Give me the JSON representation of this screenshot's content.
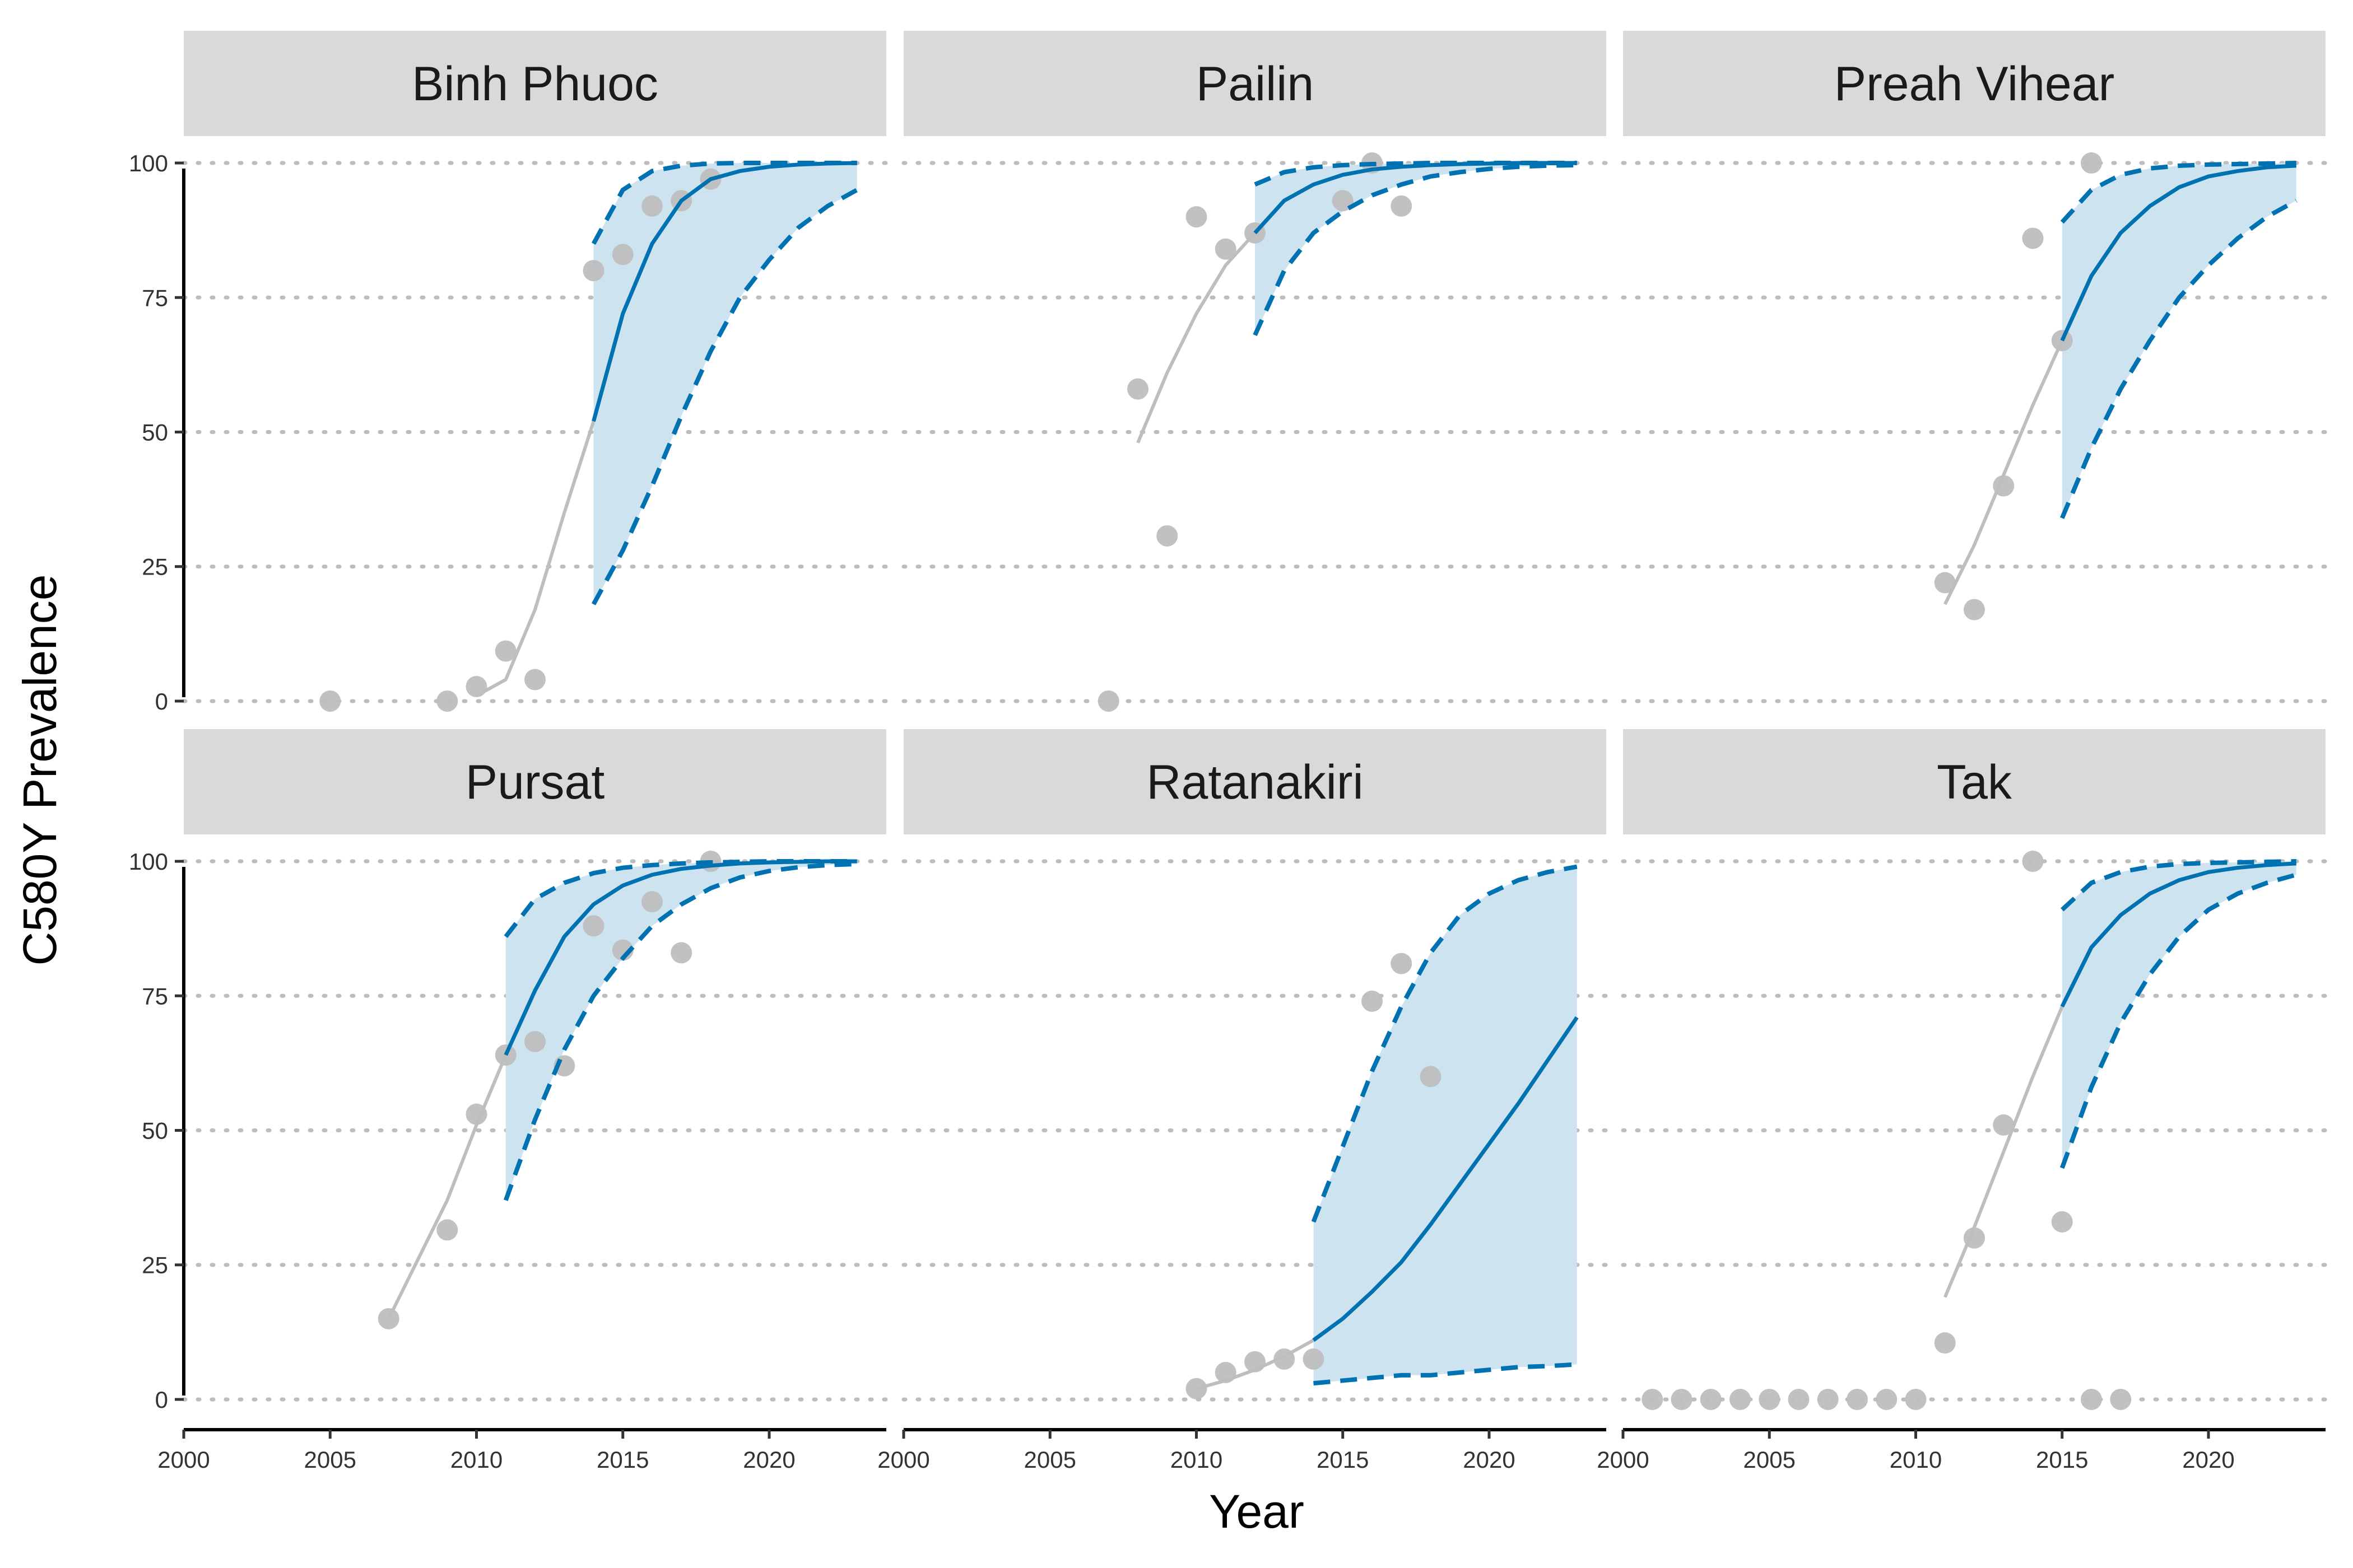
{
  "chart_data": {
    "type": "line",
    "xlabel": "Year",
    "ylabel": "C580Y Prevalence",
    "xlim": [
      2000,
      2024
    ],
    "ylim": [
      -5,
      105
    ],
    "x_ticks": [
      2000,
      2005,
      2010,
      2015,
      2020
    ],
    "y_ticks": [
      0,
      25,
      50,
      75,
      100
    ],
    "grid": "horizontal dotted",
    "colors": {
      "observed": "#BEBEBE",
      "forecast": "#0072B2",
      "band": "#CDE4F0",
      "strip": "#D9D9D9"
    },
    "facets": [
      {
        "name": "Binh Phuoc",
        "observed": [
          [
            2005,
            0
          ],
          [
            2009,
            0
          ],
          [
            2010,
            2.7
          ],
          [
            2011,
            9.3
          ],
          [
            2012,
            4
          ],
          [
            2014,
            80
          ],
          [
            2015,
            83
          ],
          [
            2016,
            92
          ],
          [
            2017,
            93
          ],
          [
            2018,
            97
          ]
        ],
        "fit": [
          [
            2010,
            1
          ],
          [
            2011,
            4
          ],
          [
            2012,
            17
          ],
          [
            2013,
            35
          ],
          [
            2014,
            52
          ]
        ],
        "forecast": {
          "x": [
            2014,
            2015,
            2016,
            2017,
            2018,
            2019,
            2020,
            2021,
            2022,
            2023
          ],
          "median": [
            52,
            72,
            85,
            93,
            97,
            98.5,
            99.3,
            99.7,
            99.9,
            100
          ],
          "lower": [
            18,
            28,
            40,
            53,
            65,
            75,
            82,
            88,
            92,
            95
          ],
          "upper": [
            85,
            95,
            98.5,
            99.5,
            99.9,
            100,
            100,
            100,
            100,
            100
          ]
        }
      },
      {
        "name": "Pailin",
        "observed": [
          [
            2007,
            0
          ],
          [
            2008,
            58
          ],
          [
            2009,
            30.7
          ],
          [
            2010,
            90
          ],
          [
            2011,
            84
          ],
          [
            2012,
            87
          ],
          [
            2015,
            93
          ],
          [
            2016,
            100
          ],
          [
            2017,
            92
          ]
        ],
        "fit": [
          [
            2008,
            48
          ],
          [
            2009,
            61
          ],
          [
            2010,
            72
          ],
          [
            2011,
            81
          ],
          [
            2012,
            87
          ]
        ],
        "forecast": {
          "x": [
            2012,
            2013,
            2014,
            2015,
            2016,
            2017,
            2018,
            2019,
            2020,
            2021,
            2022,
            2023
          ],
          "median": [
            87,
            93,
            96,
            97.8,
            98.8,
            99.3,
            99.6,
            99.8,
            99.9,
            100,
            100,
            100
          ],
          "lower": [
            68,
            80,
            87,
            91,
            94,
            96,
            97.5,
            98.3,
            98.9,
            99.3,
            99.5,
            99.6
          ],
          "upper": [
            96,
            98.3,
            99.2,
            99.6,
            99.8,
            99.9,
            100,
            100,
            100,
            100,
            100,
            100
          ]
        }
      },
      {
        "name": "Preah Vihear",
        "observed": [
          [
            2011,
            22
          ],
          [
            2012,
            17
          ],
          [
            2013,
            40
          ],
          [
            2014,
            86
          ],
          [
            2015,
            67
          ],
          [
            2016,
            100
          ]
        ],
        "fit": [
          [
            2011,
            18
          ],
          [
            2012,
            29
          ],
          [
            2013,
            42
          ],
          [
            2014,
            55
          ],
          [
            2015,
            67
          ]
        ],
        "forecast": {
          "x": [
            2015,
            2016,
            2017,
            2018,
            2019,
            2020,
            2021,
            2022,
            2023
          ],
          "median": [
            67,
            79,
            87,
            92,
            95.5,
            97.5,
            98.5,
            99.2,
            99.5
          ],
          "lower": [
            34,
            47,
            58,
            67,
            75,
            81,
            86,
            90,
            93
          ],
          "upper": [
            89,
            95,
            97.8,
            99,
            99.5,
            99.7,
            99.8,
            99.9,
            100
          ]
        }
      },
      {
        "name": "Pursat",
        "observed": [
          [
            2007,
            15
          ],
          [
            2009,
            31.5
          ],
          [
            2010,
            53
          ],
          [
            2011,
            64
          ],
          [
            2012,
            66.5
          ],
          [
            2013,
            62
          ],
          [
            2014,
            88
          ],
          [
            2015,
            83.5
          ],
          [
            2016,
            92.5
          ],
          [
            2017,
            83
          ],
          [
            2018,
            100
          ]
        ],
        "fit": [
          [
            2007,
            15
          ],
          [
            2008,
            26
          ],
          [
            2009,
            37
          ],
          [
            2010,
            51
          ],
          [
            2011,
            64
          ]
        ],
        "forecast": {
          "x": [
            2011,
            2012,
            2013,
            2014,
            2015,
            2016,
            2017,
            2018,
            2019,
            2020,
            2021,
            2022,
            2023
          ],
          "median": [
            64,
            76,
            86,
            92,
            95.5,
            97.5,
            98.6,
            99.2,
            99.6,
            99.8,
            99.9,
            100,
            100
          ],
          "lower": [
            37,
            52,
            65,
            75,
            82,
            88,
            92,
            95,
            97,
            98.2,
            98.9,
            99.3,
            99.5
          ],
          "upper": [
            86,
            93,
            96,
            97.8,
            98.8,
            99.3,
            99.6,
            99.8,
            99.9,
            100,
            100,
            100,
            100
          ]
        }
      },
      {
        "name": "Ratanakiri",
        "observed": [
          [
            2010,
            2
          ],
          [
            2011,
            5
          ],
          [
            2012,
            7
          ],
          [
            2013,
            7.5
          ],
          [
            2014,
            7.5
          ],
          [
            2016,
            74
          ],
          [
            2017,
            81
          ],
          [
            2018,
            60
          ]
        ],
        "fit": [
          [
            2010,
            2
          ],
          [
            2011,
            3.5
          ],
          [
            2012,
            5.5
          ],
          [
            2013,
            8
          ],
          [
            2014,
            11
          ]
        ],
        "forecast": {
          "x": [
            2014,
            2015,
            2016,
            2017,
            2018,
            2019,
            2020,
            2021,
            2022,
            2023
          ],
          "median": [
            11,
            15,
            20,
            25.5,
            32.5,
            40,
            47.5,
            55,
            63,
            71
          ],
          "lower": [
            3,
            3.5,
            4,
            4.5,
            4.5,
            5,
            5.5,
            6,
            6.2,
            6.5
          ],
          "upper": [
            33,
            47,
            61,
            73,
            83,
            90,
            94,
            96.5,
            98,
            99
          ]
        }
      },
      {
        "name": "Tak",
        "observed": [
          [
            2001,
            0
          ],
          [
            2002,
            0
          ],
          [
            2003,
            0
          ],
          [
            2004,
            0
          ],
          [
            2005,
            0
          ],
          [
            2006,
            0
          ],
          [
            2007,
            0
          ],
          [
            2008,
            0
          ],
          [
            2009,
            0
          ],
          [
            2010,
            0
          ],
          [
            2011,
            10.5
          ],
          [
            2012,
            30
          ],
          [
            2013,
            51
          ],
          [
            2014,
            100
          ],
          [
            2015,
            33
          ],
          [
            2016,
            0
          ],
          [
            2017,
            0
          ]
        ],
        "fit": [
          [
            2011,
            19
          ],
          [
            2012,
            32
          ],
          [
            2013,
            46
          ],
          [
            2014,
            60
          ],
          [
            2015,
            73
          ]
        ],
        "forecast": {
          "x": [
            2015,
            2016,
            2017,
            2018,
            2019,
            2020,
            2021,
            2022,
            2023
          ],
          "median": [
            73,
            84,
            90,
            94,
            96.5,
            98,
            98.8,
            99.3,
            99.6
          ],
          "lower": [
            43,
            58,
            70,
            79,
            86,
            91,
            94,
            96,
            97.5
          ],
          "upper": [
            91,
            96,
            98,
            99,
            99.5,
            99.7,
            99.8,
            99.9,
            100
          ]
        }
      }
    ]
  }
}
